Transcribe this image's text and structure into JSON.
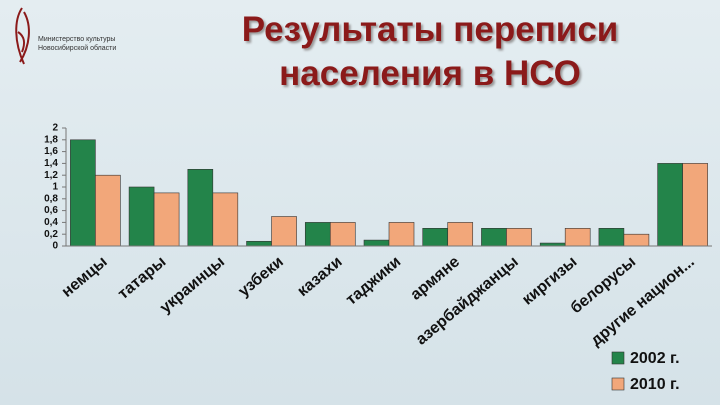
{
  "header": {
    "logo_lines": [
      "Министерство культуры",
      "Новосибирской области"
    ]
  },
  "chart_data": {
    "type": "bar",
    "title": "Результаты переписи населения в НСО",
    "categories": [
      "немцы",
      "татары",
      "украинцы",
      "узбеки",
      "казахи",
      "таджики",
      "армяне",
      "азербайджанцы",
      "киргизы",
      "белорусы",
      "другие национ..."
    ],
    "series": [
      {
        "name": "2002 г.",
        "color": "#23844a",
        "values": [
          1.8,
          1.0,
          1.3,
          0.08,
          0.4,
          0.1,
          0.3,
          0.3,
          0.05,
          0.3,
          1.4
        ]
      },
      {
        "name": "2010 г.",
        "color": "#f2a77a",
        "values": [
          1.2,
          0.9,
          0.9,
          0.5,
          0.4,
          0.4,
          0.4,
          0.3,
          0.3,
          0.2,
          1.4
        ]
      }
    ],
    "ylim": [
      0,
      2
    ],
    "yticks": [
      0,
      {
        "value": 0.2,
        "label": "0,2"
      },
      {
        "value": 0.4,
        "label": "0,4"
      },
      {
        "value": 0.6,
        "label": "0,6"
      },
      {
        "value": 0.8,
        "label": "0,8"
      },
      1,
      {
        "value": 1.2,
        "label": "1,2"
      },
      {
        "value": 1.4,
        "label": "1,4"
      },
      {
        "value": 1.6,
        "label": "1,6"
      },
      {
        "value": 1.8,
        "label": "1,8"
      },
      2
    ],
    "grid": false,
    "legend": "bottom-right"
  }
}
